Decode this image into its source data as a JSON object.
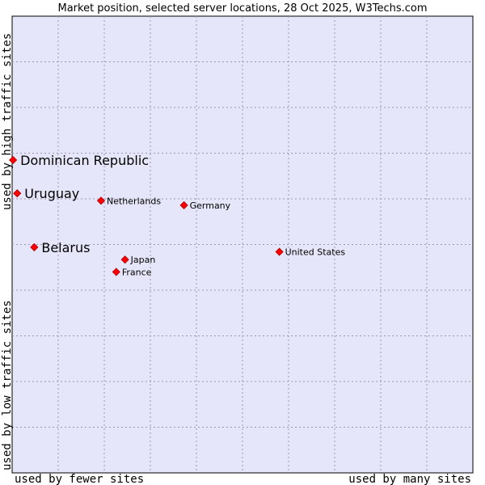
{
  "chart_data": {
    "type": "scatter",
    "title": "Market position, selected server locations, 28 Oct 2025, W3Techs.com",
    "x_label_low": "used by fewer sites",
    "x_label_high": "used by many sites",
    "y_label_low": "used by low traffic sites",
    "y_label_high": "used by high traffic sites",
    "xlim": [
      0,
      100
    ],
    "ylim": [
      0,
      100
    ],
    "grid": true,
    "point_color": "#ff0000",
    "background_color": "#e6e6fa",
    "points": [
      {
        "label": "Dominican Republic",
        "x": 0.2,
        "y": 68.5,
        "highlight": true
      },
      {
        "label": "Uruguay",
        "x": 1.1,
        "y": 61.2,
        "highlight": true
      },
      {
        "label": "Belarus",
        "x": 4.8,
        "y": 49.4,
        "highlight": true
      },
      {
        "label": "Netherlands",
        "x": 19.3,
        "y": 59.6,
        "highlight": false
      },
      {
        "label": "Germany",
        "x": 37.3,
        "y": 58.6,
        "highlight": false
      },
      {
        "label": "United States",
        "x": 58.0,
        "y": 48.4,
        "highlight": false
      },
      {
        "label": "Japan",
        "x": 24.5,
        "y": 46.7,
        "highlight": false
      },
      {
        "label": "France",
        "x": 22.6,
        "y": 44.0,
        "highlight": false
      }
    ]
  }
}
